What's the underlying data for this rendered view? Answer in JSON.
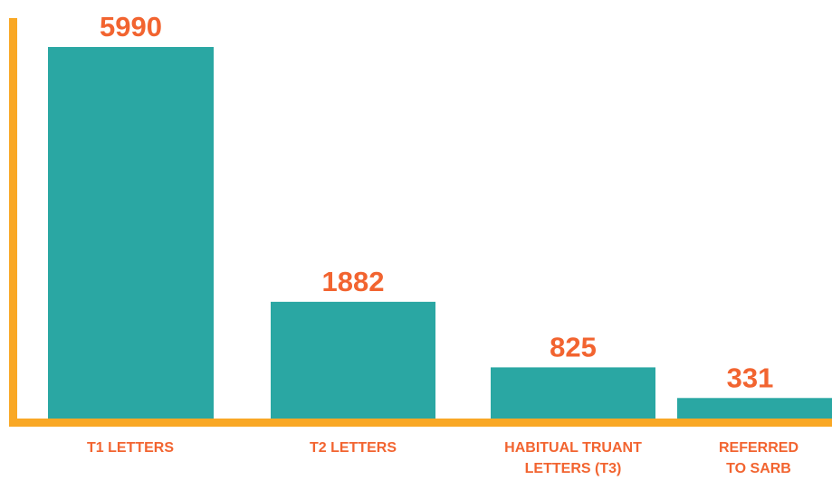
{
  "chart_data": {
    "type": "bar",
    "categories": [
      "T1 LETTERS",
      "T2 LETTERS",
      "HABITUAL TRUANT LETTERS (T3)",
      "REFERRED TO SARB"
    ],
    "values": [
      5990,
      1882,
      825,
      331
    ],
    "color": "#2aa7a3"
  }
}
